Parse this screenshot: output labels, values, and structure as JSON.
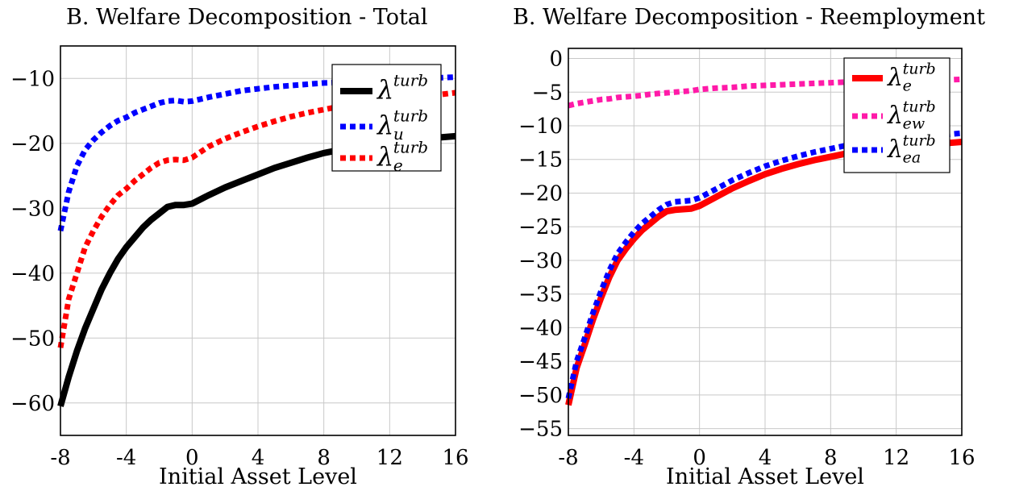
{
  "chart_data": [
    {
      "type": "line",
      "title": "B. Welfare Decomposition - Total",
      "xlabel": "Initial Asset Level",
      "ylabel": "",
      "xlim": [
        -8,
        16
      ],
      "ylim": [
        -65,
        -5
      ],
      "xticks": [
        "-8",
        "-4",
        "0",
        "4",
        "8",
        "12",
        "16"
      ],
      "yticks": [
        "−10",
        "−20",
        "−30",
        "−40",
        "−50",
        "−60"
      ],
      "grid": true,
      "legend_position": "top-right",
      "x": [
        -8,
        -7.5,
        -7,
        -6.5,
        -6,
        -5.5,
        -5,
        -4.5,
        -4,
        -3.5,
        -3,
        -2.5,
        -2,
        -1.5,
        -1,
        -0.5,
        0,
        1,
        2,
        3,
        4,
        5,
        6,
        7,
        8,
        9,
        10,
        11,
        12,
        13,
        14,
        15,
        16
      ],
      "series": [
        {
          "name": "λ^turb",
          "label_main": "λ",
          "label_sup": "turb",
          "label_sub": "",
          "color": "#000000",
          "dash": "solid",
          "values": [
            -60.5,
            -56,
            -52,
            -48.5,
            -45.5,
            -42.5,
            -40,
            -37.8,
            -36,
            -34.5,
            -33,
            -31.8,
            -30.8,
            -29.8,
            -29.5,
            -29.5,
            -29.3,
            -28,
            -26.8,
            -25.8,
            -24.8,
            -23.8,
            -23,
            -22.2,
            -21.5,
            -21,
            -20.5,
            -20.2,
            -19.9,
            -19.6,
            -19.3,
            -19.1,
            -18.9
          ]
        },
        {
          "name": "λ_u^turb",
          "label_main": "λ",
          "label_sup": "turb",
          "label_sub": "u",
          "color": "#0000ff",
          "dash": "dotted",
          "values": [
            -33.5,
            -27.5,
            -23.5,
            -21,
            -19.5,
            -18.3,
            -17.3,
            -16.5,
            -16,
            -15.3,
            -14.8,
            -14.3,
            -13.8,
            -13.5,
            -13.4,
            -13.6,
            -13.5,
            -12.9,
            -12.4,
            -11.9,
            -11.6,
            -11.3,
            -11.1,
            -10.9,
            -10.7,
            -10.6,
            -10.4,
            -10.3,
            -10.2,
            -10.1,
            -10.0,
            -9.9,
            -9.8
          ]
        },
        {
          "name": "λ_e^turb",
          "label_main": "λ",
          "label_sup": "turb",
          "label_sub": "e",
          "color": "#ff0000",
          "dash": "dotted",
          "values": [
            -51.5,
            -44,
            -40,
            -36,
            -33.5,
            -31.3,
            -29.5,
            -28,
            -27,
            -25.8,
            -24.8,
            -23.8,
            -23,
            -22.6,
            -22.5,
            -22.6,
            -22.2,
            -20.5,
            -19.3,
            -18.3,
            -17.4,
            -16.6,
            -15.9,
            -15.3,
            -14.8,
            -14.3,
            -13.9,
            -13.6,
            -13.3,
            -13.0,
            -12.7,
            -12.5,
            -12.2
          ]
        }
      ]
    },
    {
      "type": "line",
      "title": "B. Welfare Decomposition - Reemployment",
      "xlabel": "Initial Asset Level",
      "ylabel": "",
      "xlim": [
        -8,
        16
      ],
      "ylim": [
        -56,
        1.5
      ],
      "xticks": [
        "-8",
        "-4",
        "0",
        "4",
        "8",
        "12",
        "16"
      ],
      "yticks": [
        "0",
        "−5",
        "−10",
        "−15",
        "−20",
        "−25",
        "−30",
        "−35",
        "−40",
        "−45",
        "−50",
        "−55"
      ],
      "grid": true,
      "legend_position": "top-right",
      "x": [
        -8,
        -7.5,
        -7,
        -6.5,
        -6,
        -5.5,
        -5,
        -4.5,
        -4,
        -3.5,
        -3,
        -2.5,
        -2,
        -1.5,
        -1,
        -0.5,
        0,
        1,
        2,
        3,
        4,
        5,
        6,
        7,
        8,
        9,
        10,
        11,
        12,
        13,
        14,
        15,
        16
      ],
      "series": [
        {
          "name": "λ_e^turb",
          "label_main": "λ",
          "label_sup": "turb",
          "label_sub": "e",
          "color": "#ff0000",
          "dash": "solid",
          "values": [
            -51.5,
            -46,
            -42.5,
            -38.8,
            -35.5,
            -32.5,
            -30,
            -28.3,
            -26.8,
            -25.5,
            -24.5,
            -23.5,
            -22.7,
            -22.5,
            -22.4,
            -22.3,
            -21.9,
            -20.6,
            -19.3,
            -18.2,
            -17.2,
            -16.4,
            -15.7,
            -15.1,
            -14.6,
            -14.1,
            -13.7,
            -13.4,
            -13.2,
            -13.0,
            -12.8,
            -12.6,
            -12.4
          ]
        },
        {
          "name": "λ_ew^turb",
          "label_main": "λ",
          "label_sup": "turb",
          "label_sub": "ew",
          "color": "#ff1aa8",
          "dash": "dotted",
          "values": [
            -7,
            -6.7,
            -6.5,
            -6.3,
            -6.1,
            -6.0,
            -5.8,
            -5.7,
            -5.6,
            -5.5,
            -5.3,
            -5.2,
            -5.1,
            -5.0,
            -4.9,
            -4.8,
            -4.6,
            -4.4,
            -4.3,
            -4.1,
            -4.0,
            -3.9,
            -3.8,
            -3.7,
            -3.6,
            -3.5,
            -3.4,
            -3.4,
            -3.3,
            -3.3,
            -3.2,
            -3.2,
            -3.1
          ]
        },
        {
          "name": "λ_ea^turb",
          "label_main": "λ",
          "label_sup": "turb",
          "label_sub": "ea",
          "color": "#0000ff",
          "dash": "dotted",
          "values": [
            -50.5,
            -45,
            -41.5,
            -37.8,
            -34.5,
            -31.5,
            -29,
            -27.3,
            -25.8,
            -24.5,
            -23.5,
            -22.5,
            -21.7,
            -21.3,
            -21.2,
            -21.1,
            -20.7,
            -19.4,
            -18.1,
            -17.0,
            -16.0,
            -15.2,
            -14.5,
            -13.9,
            -13.4,
            -12.9,
            -12.5,
            -12.2,
            -11.9,
            -11.7,
            -11.5,
            -11.3,
            -11.1
          ]
        }
      ]
    }
  ]
}
